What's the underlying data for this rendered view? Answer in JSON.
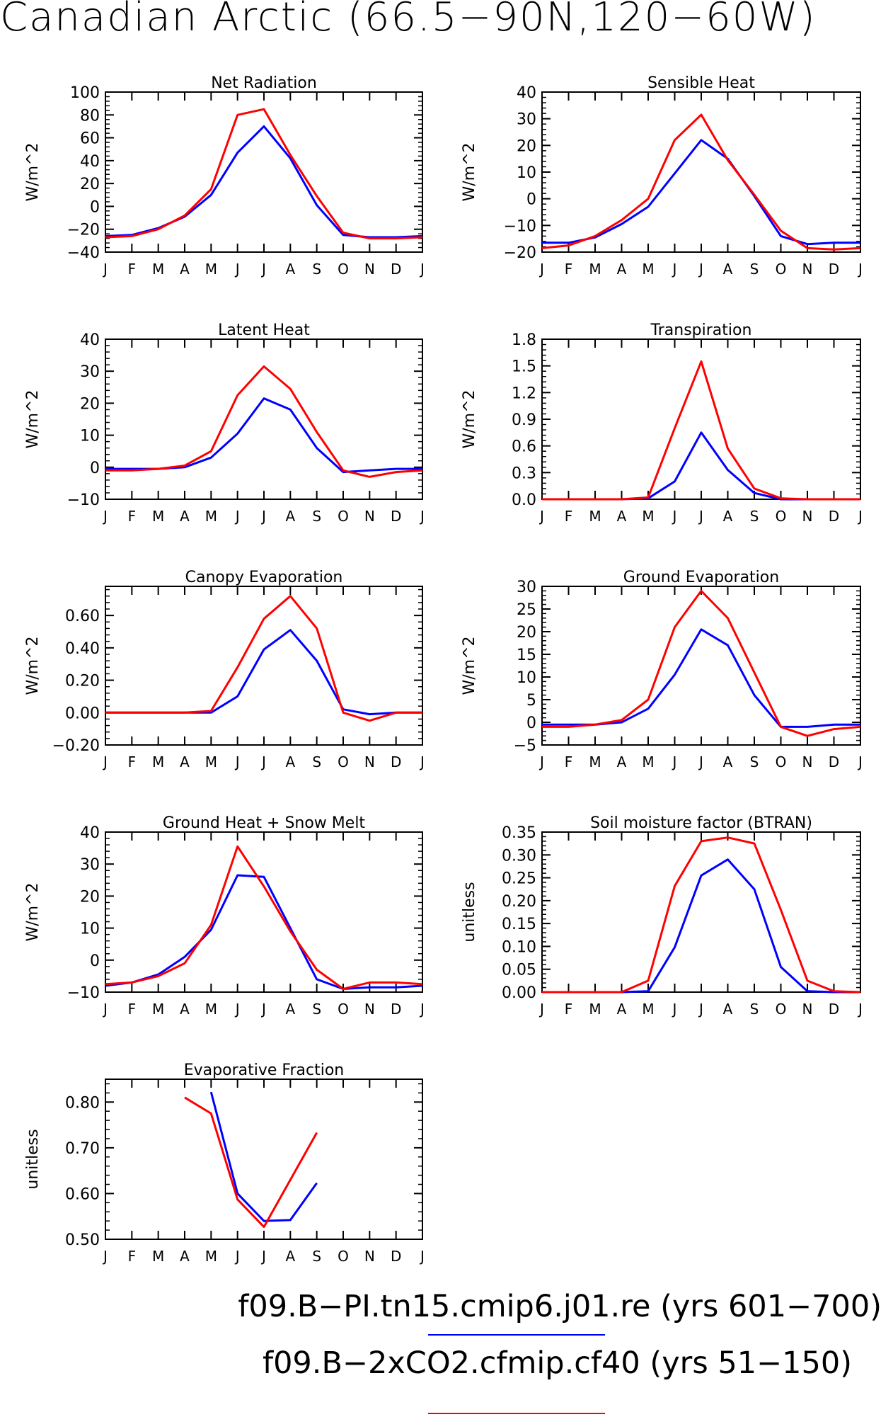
{
  "title": "Canadian Arctic (66.5−90N,120−60W)",
  "legend": [
    {
      "label": "f09.B−PI.tn15.cmip6.j01.re (yrs 601−700)",
      "color": "#0000ff"
    },
    {
      "label": "f09.B−2xCO2.cfmip.cf40 (yrs 51−150)",
      "color": "#ff0000"
    }
  ],
  "chart_data": [
    {
      "type": "line",
      "title": "Net Radiation",
      "ylabel": "W/m^2",
      "categories": [
        "J",
        "F",
        "M",
        "A",
        "M",
        "J",
        "J",
        "A",
        "S",
        "O",
        "N",
        "D",
        "J"
      ],
      "ylim": [
        -40,
        100
      ],
      "yticks": [
        "−40",
        "−20",
        "0",
        "20",
        "40",
        "60",
        "80",
        "100"
      ],
      "ytick_values": [
        -40,
        -20,
        0,
        20,
        40,
        60,
        80,
        100
      ],
      "series": [
        {
          "color": "#0000ff",
          "values": [
            -26,
            -25,
            -19,
            -9,
            10,
            47,
            70,
            42,
            1,
            -25,
            -27,
            -27,
            -26
          ]
        },
        {
          "color": "#ff0000",
          "values": [
            -27,
            -26,
            -20,
            -8,
            15,
            80,
            85,
            45,
            9,
            -23,
            -28,
            -28,
            -27
          ]
        }
      ]
    },
    {
      "type": "line",
      "title": "Sensible Heat",
      "ylabel": "W/m^2",
      "categories": [
        "J",
        "F",
        "M",
        "A",
        "M",
        "J",
        "J",
        "A",
        "S",
        "O",
        "N",
        "D",
        "J"
      ],
      "ylim": [
        -20,
        40
      ],
      "yticks": [
        "−20",
        "−10",
        "0",
        "10",
        "20",
        "30",
        "40"
      ],
      "ytick_values": [
        -20,
        -10,
        0,
        10,
        20,
        30,
        40
      ],
      "series": [
        {
          "color": "#0000ff",
          "values": [
            -16.5,
            -16.5,
            -14.5,
            -9.5,
            -3,
            9.5,
            22,
            15,
            1,
            -14,
            -17,
            -16.5,
            -16.5
          ]
        },
        {
          "color": "#ff0000",
          "values": [
            -18.5,
            -17.5,
            -14,
            -8,
            0,
            22,
            31.5,
            14.5,
            1.5,
            -12,
            -18.5,
            -19,
            -18.5
          ]
        }
      ]
    },
    {
      "type": "line",
      "title": "Latent Heat",
      "ylabel": "W/m^2",
      "categories": [
        "J",
        "F",
        "M",
        "A",
        "M",
        "J",
        "J",
        "A",
        "S",
        "O",
        "N",
        "D",
        "J"
      ],
      "ylim": [
        -10,
        40
      ],
      "yticks": [
        "−10",
        "0",
        "10",
        "20",
        "30",
        "40"
      ],
      "ytick_values": [
        -10,
        0,
        10,
        20,
        30,
        40
      ],
      "series": [
        {
          "color": "#0000ff",
          "values": [
            -0.5,
            -0.5,
            -0.5,
            0,
            3,
            10.5,
            21.5,
            18,
            6,
            -1.5,
            -1,
            -0.5,
            -0.5
          ]
        },
        {
          "color": "#ff0000",
          "values": [
            -1,
            -1,
            -0.5,
            0.5,
            5,
            22.5,
            31.5,
            24.5,
            11,
            -1,
            -3,
            -1.5,
            -1
          ]
        }
      ]
    },
    {
      "type": "line",
      "title": "Transpiration",
      "ylabel": "W/m^2",
      "categories": [
        "J",
        "F",
        "M",
        "A",
        "M",
        "J",
        "J",
        "A",
        "S",
        "O",
        "N",
        "D",
        "J"
      ],
      "ylim": [
        0,
        1.8
      ],
      "yticks": [
        "0.0",
        "0.3",
        "0.6",
        "0.9",
        "1.2",
        "1.5",
        "1.8"
      ],
      "ytick_values": [
        0,
        0.3,
        0.6,
        0.9,
        1.2,
        1.5,
        1.8
      ],
      "series": [
        {
          "color": "#0000ff",
          "values": [
            0,
            0,
            0,
            0,
            0.01,
            0.2,
            0.75,
            0.33,
            0.07,
            0,
            0,
            0,
            0
          ]
        },
        {
          "color": "#ff0000",
          "values": [
            0,
            0,
            0,
            0,
            0.02,
            0.8,
            1.55,
            0.57,
            0.12,
            0.01,
            0,
            0,
            0
          ]
        }
      ]
    },
    {
      "type": "line",
      "title": "Canopy Evaporation",
      "ylabel": "W/m^2",
      "categories": [
        "J",
        "F",
        "M",
        "A",
        "M",
        "J",
        "J",
        "A",
        "S",
        "O",
        "N",
        "D",
        "J"
      ],
      "ylim": [
        -0.2,
        0.78
      ],
      "yticks": [
        "−0.20",
        "0.00",
        "0.20",
        "0.40",
        "0.60"
      ],
      "ytick_values": [
        -0.2,
        0,
        0.2,
        0.4,
        0.6
      ],
      "series": [
        {
          "color": "#0000ff",
          "values": [
            0,
            0,
            0,
            0,
            0,
            0.1,
            0.39,
            0.51,
            0.32,
            0.02,
            -0.01,
            0,
            0
          ]
        },
        {
          "color": "#ff0000",
          "values": [
            0,
            0,
            0,
            0,
            0.01,
            0.28,
            0.58,
            0.72,
            0.52,
            0,
            -0.05,
            0,
            0
          ]
        }
      ]
    },
    {
      "type": "line",
      "title": "Ground Evaporation",
      "ylabel": "W/m^2",
      "categories": [
        "J",
        "F",
        "M",
        "A",
        "M",
        "J",
        "J",
        "A",
        "S",
        "O",
        "N",
        "D",
        "J"
      ],
      "ylim": [
        -5,
        30
      ],
      "yticks": [
        "−5",
        "0",
        "5",
        "10",
        "15",
        "20",
        "25",
        "30"
      ],
      "ytick_values": [
        -5,
        0,
        5,
        10,
        15,
        20,
        25,
        30
      ],
      "series": [
        {
          "color": "#0000ff",
          "values": [
            -0.5,
            -0.5,
            -0.5,
            0,
            3,
            10.5,
            20.5,
            17,
            6,
            -1,
            -1,
            -0.5,
            -0.5
          ]
        },
        {
          "color": "#ff0000",
          "values": [
            -1,
            -1,
            -0.5,
            0.5,
            5,
            21,
            29,
            23,
            11,
            -1,
            -3,
            -1.5,
            -1
          ]
        }
      ]
    },
    {
      "type": "line",
      "title": "Ground Heat + Snow Melt",
      "ylabel": "W/m^2",
      "categories": [
        "J",
        "F",
        "M",
        "A",
        "M",
        "J",
        "J",
        "A",
        "S",
        "O",
        "N",
        "D",
        "J"
      ],
      "ylim": [
        -10,
        40
      ],
      "yticks": [
        "−10",
        "0",
        "10",
        "20",
        "30",
        "40"
      ],
      "ytick_values": [
        -10,
        0,
        10,
        20,
        30,
        40
      ],
      "series": [
        {
          "color": "#0000ff",
          "values": [
            -8,
            -7,
            -4.5,
            1,
            9.5,
            26.5,
            26,
            10,
            -6,
            -9,
            -8.5,
            -8.5,
            -8
          ]
        },
        {
          "color": "#ff0000",
          "values": [
            -7.5,
            -7,
            -5,
            -1,
            11,
            35.5,
            23,
            9,
            -3,
            -9,
            -7,
            -7,
            -7.5
          ]
        }
      ]
    },
    {
      "type": "line",
      "title": "Soil moisture factor (BTRAN)",
      "ylabel": "unitless",
      "categories": [
        "J",
        "F",
        "M",
        "A",
        "M",
        "J",
        "J",
        "A",
        "S",
        "O",
        "N",
        "D",
        "J"
      ],
      "ylim": [
        0,
        0.35
      ],
      "yticks": [
        "0.00",
        "0.05",
        "0.10",
        "0.15",
        "0.20",
        "0.25",
        "0.30",
        "0.35"
      ],
      "ytick_values": [
        0,
        0.05,
        0.1,
        0.15,
        0.2,
        0.25,
        0.3,
        0.35
      ],
      "series": [
        {
          "color": "#0000ff",
          "values": [
            0,
            0,
            0,
            0,
            0.002,
            0.098,
            0.255,
            0.29,
            0.225,
            0.055,
            0.002,
            0,
            0
          ]
        },
        {
          "color": "#ff0000",
          "values": [
            0,
            0,
            0,
            0,
            0.025,
            0.232,
            0.33,
            0.338,
            0.325,
            0.18,
            0.025,
            0.002,
            0
          ]
        }
      ]
    },
    {
      "type": "line",
      "title": "Evaporative Fraction",
      "ylabel": "unitless",
      "categories": [
        "J",
        "F",
        "M",
        "A",
        "M",
        "J",
        "J",
        "A",
        "S",
        "O",
        "N",
        "D",
        "J"
      ],
      "ylim": [
        0.5,
        0.85
      ],
      "yticks": [
        "0.50",
        "0.60",
        "0.70",
        "0.80"
      ],
      "ytick_values": [
        0.5,
        0.6,
        0.7,
        0.8
      ],
      "series": [
        {
          "color": "#0000ff",
          "values": [
            null,
            null,
            null,
            null,
            0.822,
            0.6,
            0.54,
            0.542,
            0.623,
            null,
            null,
            null,
            null
          ]
        },
        {
          "color": "#ff0000",
          "values": [
            null,
            null,
            null,
            0.81,
            0.775,
            0.587,
            0.527,
            0.63,
            0.733,
            null,
            null,
            null,
            null
          ]
        }
      ]
    }
  ]
}
